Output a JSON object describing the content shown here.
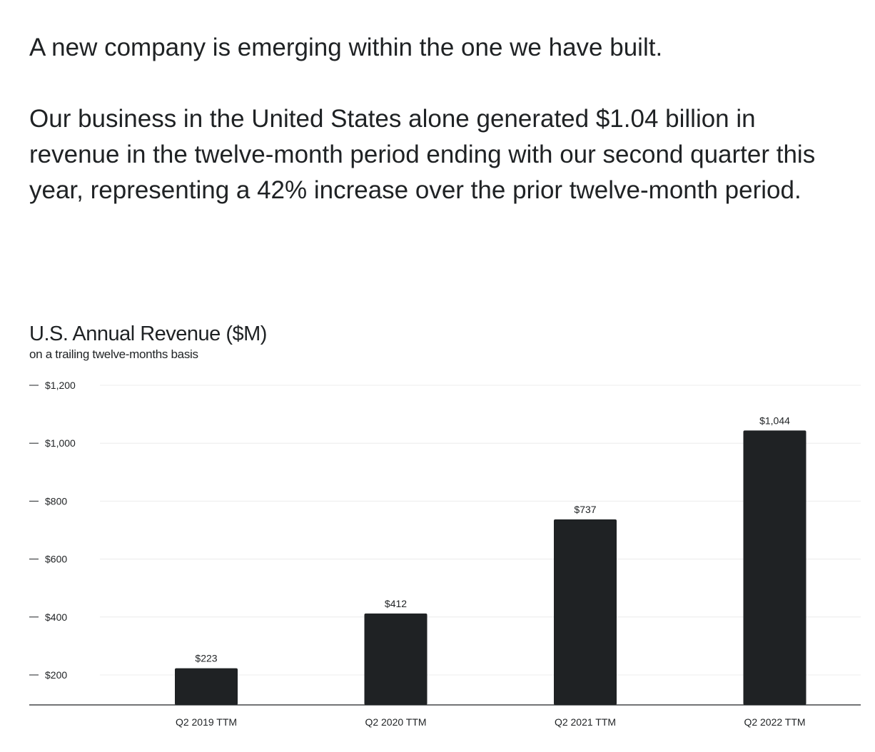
{
  "intro": {
    "paragraph1": "A new company is emerging within the one we have built.",
    "paragraph2": "Our business in the United States alone generated $1.04 billion in revenue in the twelve-month period ending with our second quarter this year, representing a 42% increase over the prior twelve-month period."
  },
  "chart_data": {
    "type": "bar",
    "title": "U.S. Annual Revenue ($M)",
    "subtitle": "on a trailing twelve-months basis",
    "xlabel": "",
    "ylabel": "",
    "categories": [
      "Q2 2019 TTM",
      "Q2 2020 TTM",
      "Q2 2021 TTM",
      "Q2 2022 TTM"
    ],
    "values": [
      223,
      412,
      737,
      1044
    ],
    "value_labels": [
      "$223",
      "$412",
      "$737",
      "$1,044"
    ],
    "y_ticks": [
      200,
      400,
      600,
      800,
      1000,
      1200
    ],
    "y_tick_labels": [
      "$200",
      "$400",
      "$600",
      "$800",
      "$1,000",
      "$1,200"
    ],
    "ylim": [
      100,
      1200
    ],
    "grid": true,
    "legend": "none",
    "colors": {
      "bar": "#1f2224",
      "grid": "#ececec",
      "axis": "#1f2224",
      "text": "#1f2224"
    }
  }
}
